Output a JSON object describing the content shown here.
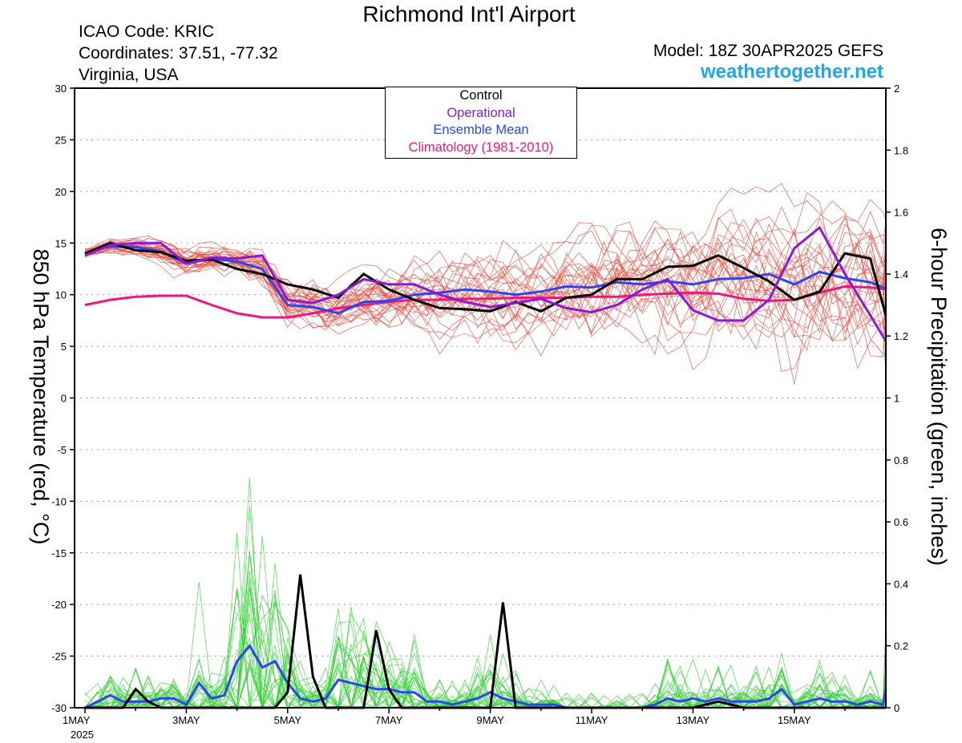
{
  "header": {
    "title": "Richmond Int'l Airport",
    "icao": "ICAO Code: KRIC",
    "coordinates": "Coordinates: 37.51, -77.32",
    "region": "Virginia, USA",
    "model": "Model: 18Z 30APR2025 GEFS",
    "site": "weathertogether.net"
  },
  "legend": {
    "items": [
      {
        "label": "Control",
        "color": "#000000"
      },
      {
        "label": "Operational",
        "color": "#8a1ad6"
      },
      {
        "label": "Ensemble Mean",
        "color": "#2a46f0"
      },
      {
        "label": "Climatology (1981-2010)",
        "color": "#ea1a7c"
      }
    ]
  },
  "colors": {
    "members_temp": "#f0463a",
    "members_precip": "#2fd02f",
    "control": "#000000",
    "operational": "#8a1ad6",
    "mean": "#2a46f0",
    "climatology": "#ea1a7c",
    "grid": "#9a9a9a"
  },
  "chart_data": {
    "type": "line",
    "ylabel": "850 hPa Temperature (red, °C)",
    "y2label": "6-hour Precipitation (green, inches)",
    "x_start": "1 May 2025 00Z",
    "x_range_days": [
      0,
      16
    ],
    "x_ticks": [
      {
        "day": 0,
        "label": "1MAY",
        "sub": "2025"
      },
      {
        "day": 2,
        "label": "3MAY"
      },
      {
        "day": 4,
        "label": "5MAY"
      },
      {
        "day": 6,
        "label": "7MAY"
      },
      {
        "day": 8,
        "label": "9MAY"
      },
      {
        "day": 10,
        "label": "11MAY"
      },
      {
        "day": 12,
        "label": "13MAY"
      },
      {
        "day": 14,
        "label": "15MAY"
      }
    ],
    "ylim": [
      -30,
      30
    ],
    "y_ticks": [
      -30,
      -25,
      -20,
      -15,
      -10,
      -5,
      0,
      5,
      10,
      15,
      20,
      25,
      30
    ],
    "y2lim": [
      0,
      2
    ],
    "y2_ticks": [
      "0",
      "0.2",
      "0.4",
      "0.6",
      "0.8",
      "1",
      "1.2",
      "1.4",
      "1.6",
      "1.8",
      "2"
    ],
    "grid": true,
    "grid_style": "dotted horizontal",
    "legend_position": "top-center",
    "temperature": {
      "days": [
        0,
        0.5,
        1,
        1.5,
        2,
        2.5,
        3,
        3.5,
        4,
        4.5,
        5,
        5.5,
        6,
        6.5,
        7,
        7.5,
        8,
        8.5,
        9,
        9.5,
        10,
        10.5,
        11,
        11.5,
        12,
        12.5,
        13,
        13.5,
        14,
        14.5,
        15,
        15.5,
        16
      ],
      "control": [
        14.0,
        15.0,
        14.3,
        14.1,
        13.3,
        13.4,
        12.5,
        12.0,
        11.0,
        10.5,
        9.7,
        12.0,
        10.5,
        9.5,
        8.7,
        8.6,
        8.4,
        9.3,
        8.4,
        9.7,
        10.0,
        11.5,
        11.5,
        12.7,
        12.8,
        13.8,
        12.6,
        11.3,
        9.5,
        10.3,
        14.0,
        13.5,
        8.0
      ],
      "operational": [
        13.8,
        14.8,
        15.0,
        15.0,
        13.0,
        13.6,
        13.5,
        13.8,
        9.5,
        9.2,
        10.0,
        11.5,
        11.0,
        11.0,
        10.0,
        9.3,
        8.8,
        9.2,
        9.6,
        8.7,
        8.3,
        9.0,
        10.5,
        11.5,
        8.5,
        7.5,
        7.5,
        9.5,
        14.5,
        16.5,
        12.0,
        8.0,
        5.5
      ],
      "mean": [
        14.0,
        14.7,
        14.6,
        14.2,
        13.0,
        13.5,
        13.2,
        12.5,
        9.0,
        8.8,
        8.2,
        9.3,
        9.4,
        10.0,
        10.2,
        10.5,
        10.3,
        10.0,
        10.3,
        10.8,
        10.7,
        11.2,
        11.0,
        11.3,
        11.0,
        11.5,
        11.6,
        12.0,
        11.0,
        12.2,
        11.6,
        11.2,
        10.6
      ],
      "climatology": [
        9.0,
        9.5,
        9.8,
        9.9,
        9.9,
        9.0,
        8.2,
        7.8,
        7.8,
        8.2,
        8.7,
        9.0,
        9.3,
        9.5,
        9.5,
        9.6,
        9.6,
        9.7,
        9.7,
        9.7,
        9.8,
        9.8,
        10.0,
        10.1,
        10.2,
        10.1,
        9.6,
        9.4,
        9.5,
        10.2,
        10.8,
        10.7,
        10.5
      ]
    },
    "precipitation": {
      "days": [
        0,
        0.25,
        0.5,
        0.75,
        1,
        1.25,
        1.5,
        1.75,
        2,
        2.25,
        2.5,
        2.75,
        3,
        3.25,
        3.5,
        3.75,
        4,
        4.25,
        4.5,
        4.75,
        5,
        5.25,
        5.5,
        5.75,
        6,
        6.25,
        6.5,
        6.75,
        7,
        7.25,
        7.5,
        7.75,
        8,
        8.25,
        8.5,
        8.75,
        9,
        9.25,
        9.5,
        9.75,
        10,
        10.25,
        10.5,
        10.75,
        11,
        11.25,
        11.5,
        11.75,
        12,
        12.25,
        12.5,
        12.75,
        13,
        13.25,
        13.5,
        13.75,
        14,
        14.25,
        14.5,
        14.75,
        15,
        15.25,
        15.5,
        15.75,
        16
      ],
      "control": [
        0,
        0,
        0,
        0,
        0.06,
        0.02,
        0,
        0,
        0,
        0,
        0,
        0,
        0,
        0,
        0,
        0,
        0.05,
        0.43,
        0.1,
        0,
        0,
        0,
        0,
        0.25,
        0.06,
        0,
        0,
        0,
        0,
        0,
        0,
        0,
        0,
        0.34,
        0,
        0,
        0,
        0,
        0,
        0,
        0,
        0,
        0,
        0,
        0,
        0,
        0,
        0,
        0,
        0.01,
        0.02,
        0.01,
        0,
        0,
        0,
        0,
        0,
        0,
        0,
        0,
        0,
        0,
        0,
        0,
        0
      ],
      "mean": [
        0,
        0.02,
        0.04,
        0.02,
        0.02,
        0.02,
        0.03,
        0.03,
        0.01,
        0.08,
        0.03,
        0.04,
        0.15,
        0.2,
        0.13,
        0.15,
        0.08,
        0.03,
        0.02,
        0.03,
        0.09,
        0.08,
        0.07,
        0.06,
        0.06,
        0.05,
        0.05,
        0.02,
        0.02,
        0.01,
        0.02,
        0.03,
        0.05,
        0.03,
        0.02,
        0.01,
        0.01,
        0.01,
        0,
        0,
        0,
        0,
        0,
        0,
        0,
        0.01,
        0.03,
        0.02,
        0.03,
        0.02,
        0.03,
        0.02,
        0.02,
        0.02,
        0.03,
        0.06,
        0.01,
        0.02,
        0.03,
        0.02,
        0.02,
        0.01,
        0.02,
        0.01,
        0.06
      ]
    }
  }
}
